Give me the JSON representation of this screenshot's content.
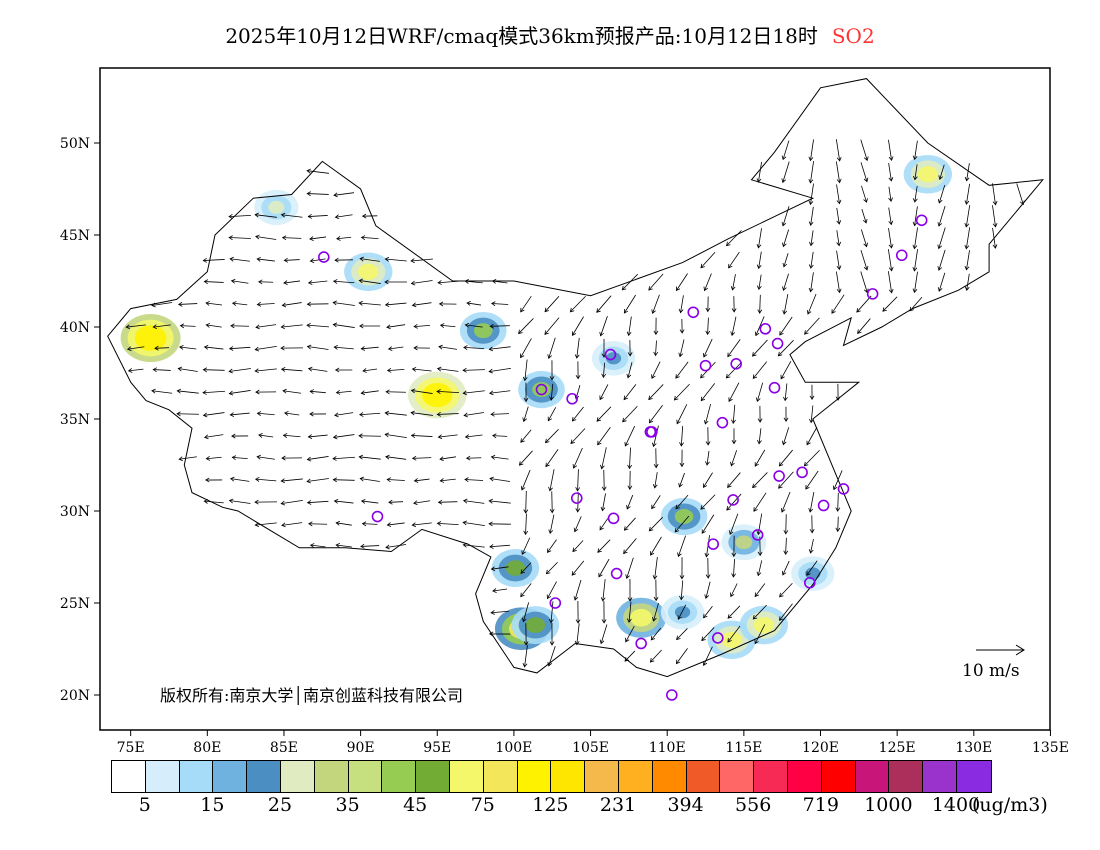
{
  "title": {
    "text": "2025年10月12日WRF/cmaq模式36km预报产品:10月12日18时",
    "species": "SO2",
    "species_color": "#ff3333"
  },
  "map": {
    "lon_ticks": [
      "75E",
      "80E",
      "85E",
      "90E",
      "95E",
      "100E",
      "105E",
      "110E",
      "115E",
      "120E",
      "125E",
      "130E",
      "135E"
    ],
    "lat_ticks": [
      "50N",
      "45N",
      "40N",
      "35N",
      "30N",
      "25N",
      "20N"
    ],
    "copyright": "版权所有:南京大学│南京创蓝科技有限公司",
    "wind_scale_label": "10 m/s",
    "hotspots": [
      {
        "lon": 76.3,
        "lat": 39.4,
        "value": 120
      },
      {
        "lon": 95,
        "lat": 36.3,
        "value": 110
      },
      {
        "lon": 90.5,
        "lat": 43,
        "value": 50
      },
      {
        "lon": 84.5,
        "lat": 46.5,
        "value": 25
      },
      {
        "lon": 127,
        "lat": 48.3,
        "value": 50
      },
      {
        "lon": 98,
        "lat": 39.8,
        "value": 40
      },
      {
        "lon": 101.8,
        "lat": 36.6,
        "value": 40
      },
      {
        "lon": 106.5,
        "lat": 38.3,
        "value": 20
      },
      {
        "lon": 100.1,
        "lat": 26.9,
        "value": 45
      },
      {
        "lon": 100.5,
        "lat": 23.6,
        "value": 80
      },
      {
        "lon": 101.4,
        "lat": 23.8,
        "value": 45
      },
      {
        "lon": 108.3,
        "lat": 24.2,
        "value": 60
      },
      {
        "lon": 111.1,
        "lat": 29.7,
        "value": 40
      },
      {
        "lon": 114.2,
        "lat": 23,
        "value": 50
      },
      {
        "lon": 116.3,
        "lat": 23.8,
        "value": 50
      },
      {
        "lon": 115,
        "lat": 28.3,
        "value": 30
      },
      {
        "lon": 111,
        "lat": 24.5,
        "value": 20
      },
      {
        "lon": 119.5,
        "lat": 26.6,
        "value": 20
      }
    ],
    "stations": [
      [
        87.6,
        43.8
      ],
      [
        91.1,
        29.7
      ],
      [
        101.8,
        36.6
      ],
      [
        103.8,
        36.1
      ],
      [
        104.1,
        30.7
      ],
      [
        106.5,
        29.6
      ],
      [
        106.7,
        26.6
      ],
      [
        102.7,
        25.0
      ],
      [
        108.3,
        22.8
      ],
      [
        110.3,
        20.0
      ],
      [
        106.3,
        38.5
      ],
      [
        108.9,
        34.3
      ],
      [
        111.7,
        40.8
      ],
      [
        112.5,
        37.9
      ],
      [
        113.6,
        34.8
      ],
      [
        114.5,
        38.0
      ],
      [
        116.4,
        39.9
      ],
      [
        117.2,
        39.1
      ],
      [
        117.0,
        36.7
      ],
      [
        117.3,
        31.9
      ],
      [
        118.8,
        32.1
      ],
      [
        120.2,
        30.3
      ],
      [
        121.5,
        31.2
      ],
      [
        119.3,
        26.1
      ],
      [
        114.3,
        30.6
      ],
      [
        113.0,
        28.2
      ],
      [
        115.9,
        28.7
      ],
      [
        113.3,
        23.1
      ],
      [
        123.4,
        41.8
      ],
      [
        125.3,
        43.9
      ],
      [
        126.6,
        45.8
      ],
      [
        109.0,
        34.3
      ]
    ]
  },
  "colorbar": {
    "colors": [
      "#ffffff",
      "#d6eefb",
      "#a6dcf7",
      "#6fb2e0",
      "#4a8ec2",
      "#e0ebc1",
      "#c3d67e",
      "#c6e07f",
      "#96cc52",
      "#72ac35",
      "#f4f76a",
      "#f4e65a",
      "#fff200",
      "#ffe600",
      "#f5b84a",
      "#ffb020",
      "#ff8a00",
      "#f05a28",
      "#ff6666",
      "#f72a55",
      "#ff0044",
      "#ff0000",
      "#c8157a",
      "#ac2e5a",
      "#9933cc",
      "#8a2be2"
    ],
    "labels": [
      "5",
      "15",
      "25",
      "35",
      "45",
      "75",
      "125",
      "231",
      "394",
      "556",
      "719",
      "1000",
      "1400"
    ],
    "unit": "(ug/m3)"
  }
}
